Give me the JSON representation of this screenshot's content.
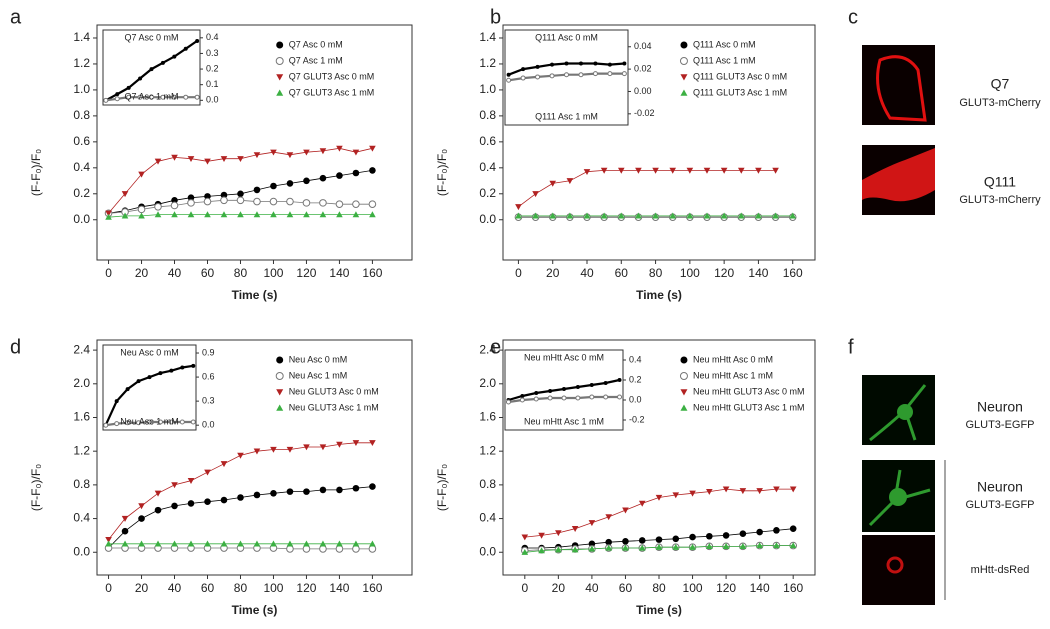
{
  "chart_data": [
    {
      "type": "line",
      "panel": "a",
      "xlabel": "Time (s)",
      "ylabel": "(F-F₀)/F₀",
      "xlim": [
        -7,
        184
      ],
      "ylim": [
        -0.31,
        1.5
      ],
      "xticks": [
        0,
        20,
        40,
        60,
        80,
        100,
        120,
        140,
        160
      ],
      "yticks": [
        {
          "value": 0,
          "label": "0.0"
        },
        0.2,
        0.4,
        0.6,
        0.8,
        {
          "value": 1,
          "label": "1.0"
        },
        1.2,
        1.4
      ],
      "x": [
        0,
        10,
        20,
        30,
        40,
        50,
        60,
        70,
        80,
        90,
        100,
        110,
        120,
        130,
        140,
        150,
        160
      ],
      "series": [
        {
          "name": "Q7 Asc 0 mM",
          "color": "#000000",
          "marker": "filled-circle",
          "values": [
            0.05,
            0.07,
            0.1,
            0.12,
            0.15,
            0.17,
            0.18,
            0.19,
            0.2,
            0.23,
            0.26,
            0.28,
            0.3,
            0.32,
            0.34,
            0.36,
            0.38
          ]
        },
        {
          "name": "Q7 Asc 1 mM",
          "color": "#777777",
          "marker": "open-circle",
          "values": [
            0.05,
            0.06,
            0.08,
            0.1,
            0.11,
            0.13,
            0.14,
            0.15,
            0.15,
            0.14,
            0.14,
            0.14,
            0.13,
            0.13,
            0.12,
            0.12,
            0.12
          ]
        },
        {
          "name": "Q7 GLUT3 Asc 0 mM",
          "color": "#b22222",
          "marker": "triangle-down",
          "values": [
            0.05,
            0.2,
            0.35,
            0.45,
            0.48,
            0.47,
            0.45,
            0.47,
            0.47,
            0.5,
            0.52,
            0.5,
            0.52,
            0.53,
            0.55,
            0.52,
            0.55
          ]
        },
        {
          "name": "Q7 GLUT3 Asc 1 mM",
          "color": "#3cb043",
          "marker": "triangle-up",
          "values": [
            0.02,
            0.03,
            0.03,
            0.04,
            0.04,
            0.04,
            0.04,
            0.04,
            0.04,
            0.04,
            0.04,
            0.04,
            0.04,
            0.04,
            0.04,
            0.04,
            0.04
          ]
        }
      ],
      "inset": {
        "xlim": [
          -5,
          165
        ],
        "ylim": [
          -0.03,
          0.45
        ],
        "yticks": [
          {
            "value": 0,
            "label": "0.0"
          },
          0.1,
          0.2,
          0.3,
          0.4
        ],
        "x": [
          0,
          20,
          40,
          60,
          80,
          100,
          120,
          140,
          160
        ],
        "series": [
          {
            "name": "Q7 Asc 0 mM",
            "color": "#000000",
            "values": [
              0.0,
              0.04,
              0.08,
              0.14,
              0.2,
              0.24,
              0.28,
              0.33,
              0.38
            ]
          },
          {
            "name": "Q7 Asc 1 mM",
            "color": "#777777",
            "values": [
              0.0,
              0.01,
              0.02,
              0.02,
              0.02,
              0.02,
              0.02,
              0.02,
              0.02
            ]
          }
        ]
      }
    },
    {
      "type": "line",
      "panel": "b",
      "xlabel": "Time (s)",
      "ylabel": "(F-F₀)/F₀",
      "xlim": [
        -9,
        173
      ],
      "ylim": [
        -0.31,
        1.5
      ],
      "xticks": [
        0,
        20,
        40,
        60,
        80,
        100,
        120,
        140,
        160
      ],
      "yticks": [
        {
          "value": 0,
          "label": "0.0"
        },
        0.2,
        0.4,
        0.6,
        0.8,
        {
          "value": 1,
          "label": "1.0"
        },
        1.2,
        1.4
      ],
      "x": [
        0,
        10,
        20,
        30,
        40,
        50,
        60,
        70,
        80,
        90,
        100,
        110,
        120,
        130,
        140,
        150,
        160
      ],
      "series": [
        {
          "name": "Q111 Asc 0 mM",
          "color": "#000000",
          "marker": "filled-circle",
          "values": [
            0.02,
            0.02,
            0.02,
            0.02,
            0.02,
            0.02,
            0.02,
            0.02,
            0.02,
            0.02,
            0.02,
            0.02,
            0.02,
            0.02,
            0.02,
            0.02,
            0.02
          ]
        },
        {
          "name": "Q111 Asc 1 mM",
          "color": "#777777",
          "marker": "open-circle",
          "values": [
            0.02,
            0.02,
            0.02,
            0.02,
            0.02,
            0.02,
            0.02,
            0.02,
            0.02,
            0.02,
            0.02,
            0.02,
            0.02,
            0.02,
            0.02,
            0.02,
            0.02
          ]
        },
        {
          "name": "Q111 GLUT3 Asc 0 mM",
          "color": "#b22222",
          "marker": "triangle-down",
          "values": [
            0.1,
            0.2,
            0.28,
            0.3,
            0.37,
            0.38,
            0.38,
            0.38,
            0.38,
            0.38,
            0.38,
            0.38,
            0.38,
            0.38,
            0.38,
            0.38,
            null
          ]
        },
        {
          "name": "Q111 GLUT3 Asc 1 mM",
          "color": "#3cb043",
          "marker": "triangle-up",
          "values": [
            0.03,
            0.03,
            0.03,
            0.03,
            0.03,
            0.03,
            0.03,
            0.03,
            0.03,
            0.03,
            0.03,
            0.03,
            0.03,
            0.03,
            0.03,
            0.03,
            0.03
          ]
        }
      ],
      "inset": {
        "xlim": [
          -5,
          165
        ],
        "ylim": [
          -0.03,
          0.055
        ],
        "yticks": [
          -0.02,
          {
            "value": 0,
            "label": "0.00"
          },
          0.02,
          0.04
        ],
        "x": [
          0,
          20,
          40,
          60,
          80,
          100,
          120,
          140,
          160
        ],
        "series": [
          {
            "name": "Q111 Asc 0 mM",
            "color": "#000000",
            "values": [
              0.015,
              0.02,
              0.022,
              0.024,
              0.025,
              0.025,
              0.025,
              0.024,
              0.025
            ]
          },
          {
            "name": "Q111 Asc 1 mM",
            "color": "#777777",
            "values": [
              0.01,
              0.012,
              0.013,
              0.014,
              0.015,
              0.015,
              0.016,
              0.016,
              0.016
            ]
          }
        ]
      }
    },
    {
      "type": "line",
      "panel": "d",
      "xlabel": "Time (s)",
      "ylabel": "(F-F₀)/F₀",
      "xlim": [
        -7,
        184
      ],
      "ylim": [
        -0.27,
        2.52
      ],
      "xticks": [
        0,
        20,
        40,
        60,
        80,
        100,
        120,
        140,
        160
      ],
      "yticks": [
        {
          "value": 0,
          "label": "0.0"
        },
        0.4,
        0.8,
        1.2,
        1.6,
        {
          "value": 2,
          "label": "2.0"
        },
        2.4
      ],
      "x": [
        0,
        10,
        20,
        30,
        40,
        50,
        60,
        70,
        80,
        90,
        100,
        110,
        120,
        130,
        140,
        150,
        160
      ],
      "series": [
        {
          "name": "Neu Asc 0 mM",
          "color": "#000000",
          "marker": "filled-circle",
          "values": [
            0.05,
            0.25,
            0.4,
            0.5,
            0.55,
            0.58,
            0.6,
            0.62,
            0.65,
            0.68,
            0.7,
            0.72,
            0.72,
            0.74,
            0.74,
            0.76,
            0.78
          ]
        },
        {
          "name": "Neu Asc 1 mM",
          "color": "#777777",
          "marker": "open-circle",
          "values": [
            0.05,
            0.05,
            0.05,
            0.05,
            0.05,
            0.05,
            0.05,
            0.05,
            0.05,
            0.05,
            0.05,
            0.04,
            0.04,
            0.04,
            0.04,
            0.04,
            0.04
          ]
        },
        {
          "name": "Neu GLUT3 Asc 0 mM",
          "color": "#b22222",
          "marker": "triangle-down",
          "values": [
            0.15,
            0.4,
            0.55,
            0.7,
            0.8,
            0.85,
            0.95,
            1.05,
            1.15,
            1.2,
            1.22,
            1.22,
            1.25,
            1.25,
            1.28,
            1.3,
            1.3
          ]
        },
        {
          "name": "Neu GLUT3 Asc 1 mM",
          "color": "#3cb043",
          "marker": "triangle-up",
          "values": [
            0.1,
            0.1,
            0.1,
            0.1,
            0.1,
            0.1,
            0.1,
            0.1,
            0.1,
            0.1,
            0.1,
            0.1,
            0.1,
            0.1,
            0.1,
            0.1,
            0.1
          ]
        }
      ],
      "inset": {
        "xlim": [
          -5,
          165
        ],
        "ylim": [
          -0.06,
          1.0
        ],
        "yticks": [
          {
            "value": 0,
            "label": "0.0"
          },
          0.3,
          0.6,
          0.9
        ],
        "x": [
          0,
          20,
          40,
          60,
          80,
          100,
          120,
          140,
          160
        ],
        "series": [
          {
            "name": "Neu Asc 0 mM",
            "color": "#000000",
            "values": [
              0.0,
              0.3,
              0.45,
              0.55,
              0.6,
              0.65,
              0.68,
              0.72,
              0.74
            ]
          },
          {
            "name": "Neu Asc 1 mM",
            "color": "#777777",
            "values": [
              0.0,
              0.02,
              0.03,
              0.03,
              0.04,
              0.04,
              0.04,
              0.04,
              0.04
            ]
          }
        ]
      }
    },
    {
      "type": "line",
      "panel": "e",
      "xlabel": "Time (s)",
      "ylabel": "(F-F₀)/F₀",
      "xlim": [
        -13,
        173
      ],
      "ylim": [
        -0.27,
        2.52
      ],
      "xticks": [
        0,
        20,
        40,
        60,
        80,
        100,
        120,
        140,
        160
      ],
      "yticks": [
        {
          "value": 0,
          "label": "0.0"
        },
        0.4,
        0.8,
        1.2,
        1.6,
        {
          "value": 2,
          "label": "2.0"
        },
        2.4
      ],
      "x": [
        0,
        10,
        20,
        30,
        40,
        50,
        60,
        70,
        80,
        90,
        100,
        110,
        120,
        130,
        140,
        150,
        160
      ],
      "series": [
        {
          "name": "Neu mHtt Asc 0 mM",
          "color": "#000000",
          "marker": "filled-circle",
          "values": [
            0.05,
            0.05,
            0.06,
            0.08,
            0.1,
            0.12,
            0.13,
            0.14,
            0.15,
            0.16,
            0.18,
            0.19,
            0.2,
            0.22,
            0.24,
            0.26,
            0.28
          ]
        },
        {
          "name": "Neu mHtt Asc 1 mM",
          "color": "#777777",
          "marker": "open-circle",
          "values": [
            0.02,
            0.03,
            0.03,
            0.04,
            0.04,
            0.05,
            0.05,
            0.05,
            0.06,
            0.06,
            0.06,
            0.07,
            0.07,
            0.07,
            0.08,
            0.08,
            0.08
          ]
        },
        {
          "name": "Neu mHtt GLUT3 Asc 0 mM",
          "color": "#b22222",
          "marker": "triangle-down",
          "values": [
            0.18,
            0.2,
            0.23,
            0.28,
            0.35,
            0.42,
            0.5,
            0.58,
            0.65,
            0.68,
            0.7,
            0.72,
            0.75,
            0.73,
            0.73,
            0.75,
            0.75
          ]
        },
        {
          "name": "Neu mHtt GLUT3 Asc 1 mM",
          "color": "#3cb043",
          "marker": "triangle-up",
          "values": [
            0.0,
            0.02,
            0.03,
            0.03,
            0.04,
            0.05,
            0.05,
            0.05,
            0.06,
            0.06,
            0.06,
            0.07,
            0.07,
            0.07,
            0.08,
            0.08,
            0.08
          ]
        }
      ],
      "inset": {
        "xlim": [
          -5,
          165
        ],
        "ylim": [
          -0.3,
          0.5
        ],
        "yticks": [
          -0.2,
          {
            "value": 0,
            "label": "0.0"
          },
          0.2,
          0.4
        ],
        "x": [
          0,
          20,
          40,
          60,
          80,
          100,
          120,
          140,
          160
        ],
        "series": [
          {
            "name": "Neu mHtt Asc 0 mM",
            "color": "#000000",
            "values": [
              0.0,
              0.04,
              0.07,
              0.09,
              0.11,
              0.13,
              0.15,
              0.17,
              0.2
            ]
          },
          {
            "name": "Neu mHtt Asc 1 mM",
            "color": "#777777",
            "values": [
              -0.02,
              0.0,
              0.01,
              0.02,
              0.02,
              0.02,
              0.03,
              0.03,
              0.03
            ]
          }
        ]
      }
    }
  ],
  "image_panels": [
    {
      "letter": "c",
      "labels": [
        "Q7",
        "GLUT3-mCherry",
        "Q111",
        "GLUT3-mCherry"
      ]
    },
    {
      "letter": "f",
      "labels": [
        "Neuron",
        "GLUT3-EGFP",
        "Neuron",
        "GLUT3-EGFP",
        "mHtt-dsRed"
      ]
    }
  ]
}
